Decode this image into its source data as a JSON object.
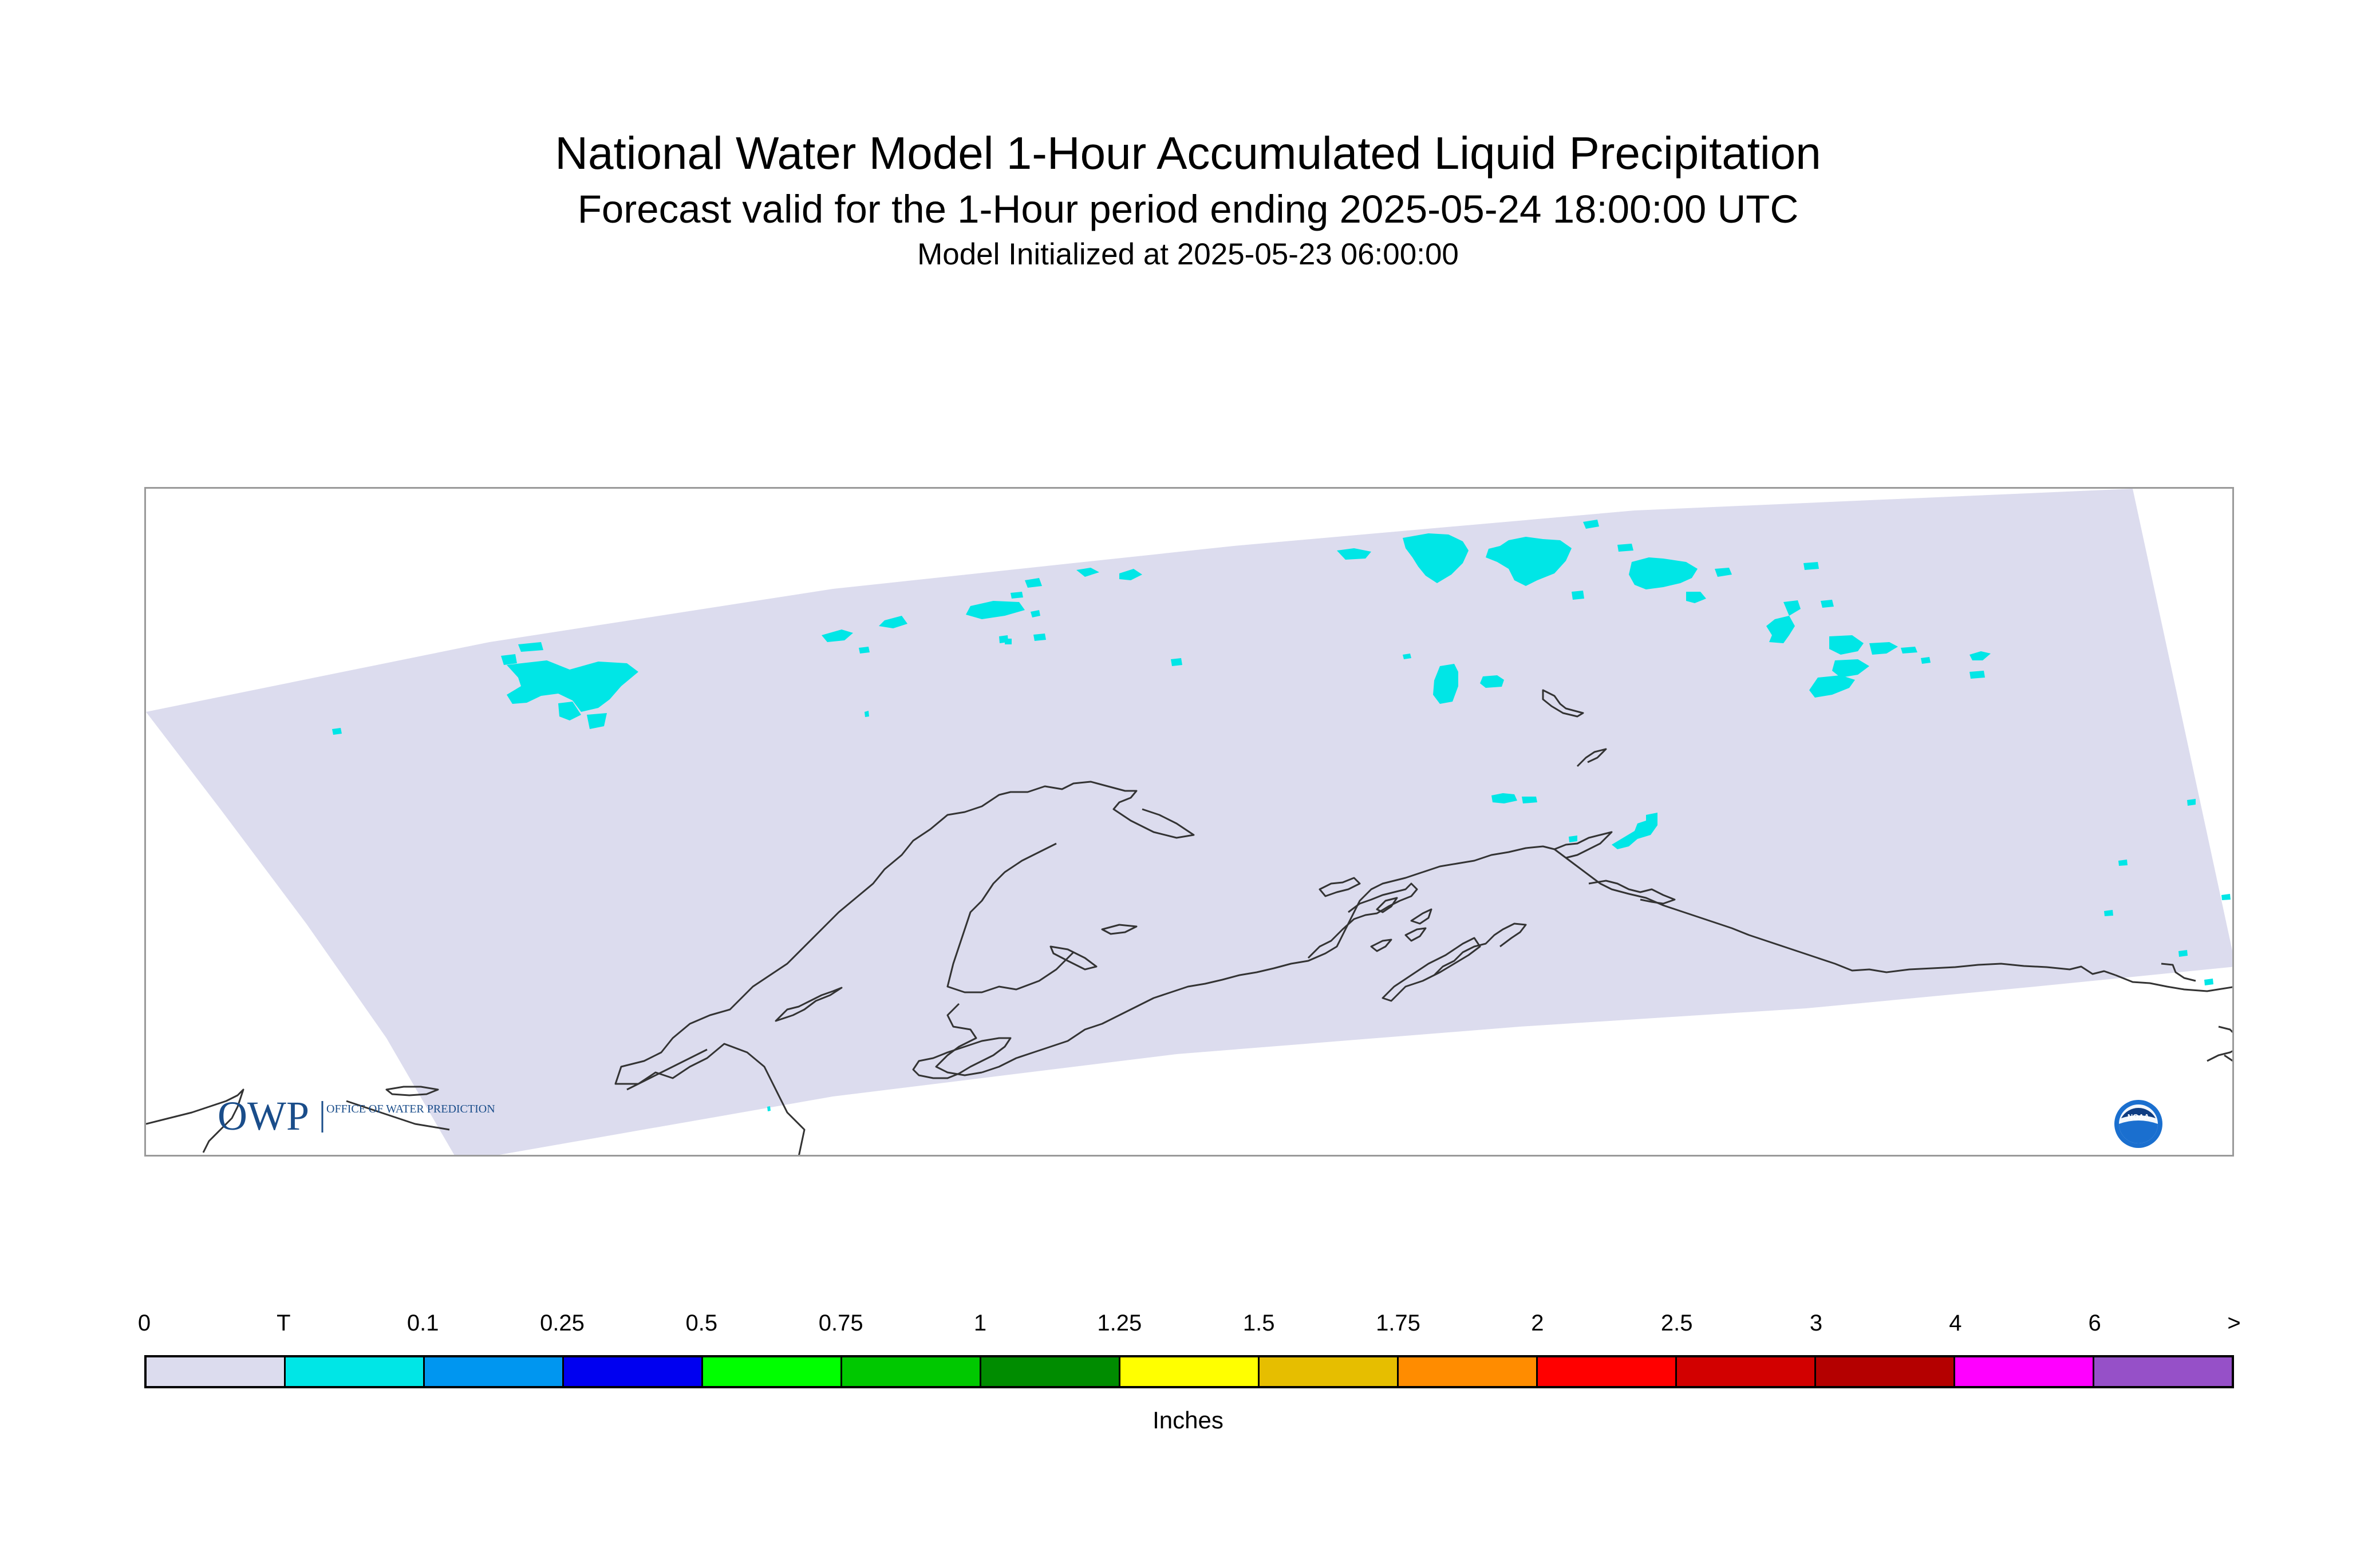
{
  "titles": {
    "main": "National Water Model 1-Hour Accumulated Liquid Precipitation",
    "sub": "Forecast valid for the 1-Hour period ending 2025-05-24 18:00:00 UTC",
    "init": "Model Initialized at 2025-05-23 06:00:00"
  },
  "map": {
    "domain_fill": "#dcdcee",
    "precip_color": "#00e6e6",
    "coast_color": "#333333"
  },
  "logos": {
    "owp_text": "OWP",
    "owp_sub": "OFFICE OF WATER PREDICTION",
    "noaa_text": "NOAA"
  },
  "legend": {
    "tick_labels": [
      "0",
      "T",
      "0.1",
      "0.25",
      "0.5",
      "0.75",
      "1",
      "1.25",
      "1.5",
      "1.75",
      "2",
      "2.5",
      "3",
      "4",
      "6",
      ">"
    ],
    "colors": [
      "#dcdcee",
      "#00e6e6",
      "#0096f0",
      "#0000f0",
      "#00ff00",
      "#00c800",
      "#008c00",
      "#ffff00",
      "#e6be00",
      "#ff8c00",
      "#ff0000",
      "#d20000",
      "#b40000",
      "#ff00ff",
      "#9650c8"
    ],
    "units": "Inches"
  }
}
